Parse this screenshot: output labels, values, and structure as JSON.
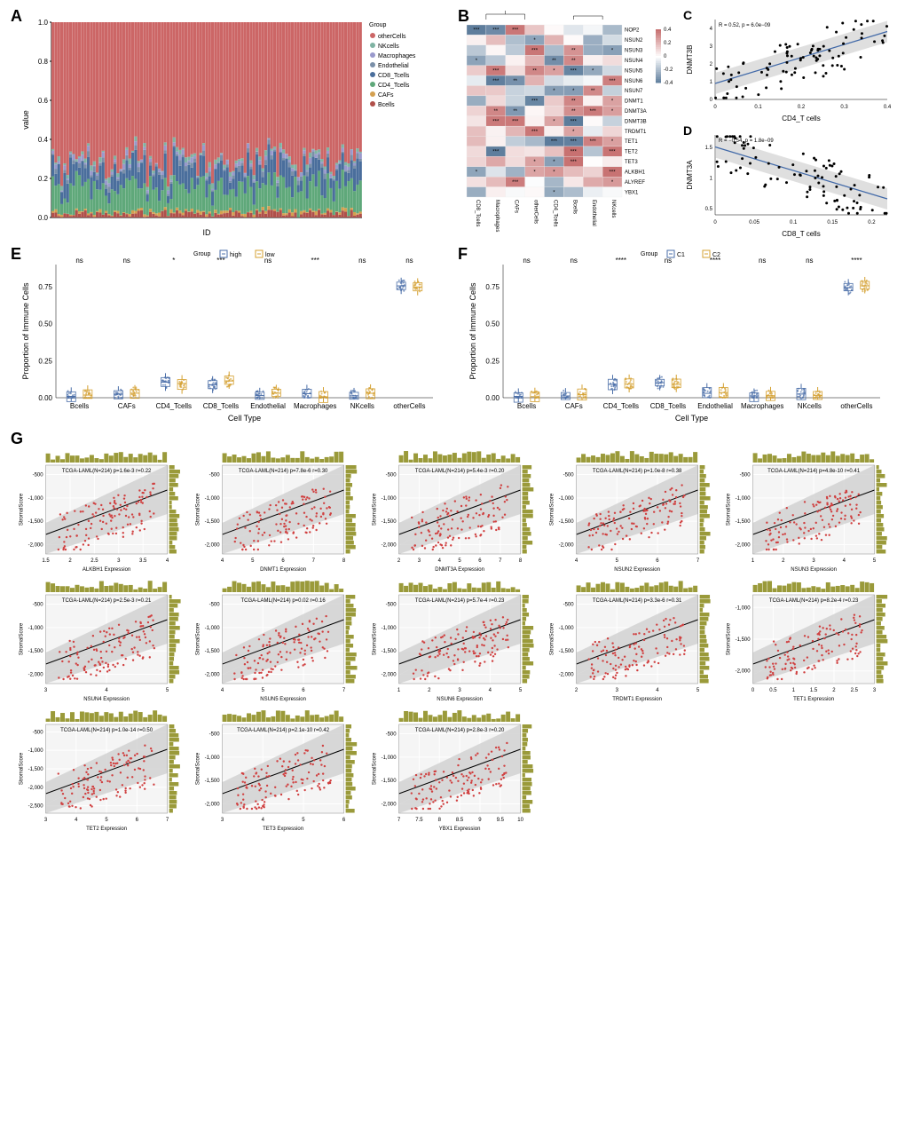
{
  "panelA": {
    "label": "A",
    "ylabel": "value",
    "xlabel": "ID",
    "legend_title": "Group",
    "yticks": [
      0.0,
      0.2,
      0.4,
      0.6,
      0.8,
      1.0
    ],
    "cell_types": [
      "otherCells",
      "NKcells",
      "Macrophages",
      "Endothelial",
      "CD8_Tcells",
      "CD4_Tcells",
      "CAFs",
      "Bcells"
    ],
    "colors": {
      "otherCells": "#cc6666",
      "NKcells": "#7fb3a3",
      "Macrophages": "#9999cc",
      "Endothelial": "#7a8fa8",
      "CD8_Tcells": "#4a6e9c",
      "CD4_Tcells": "#5fa87a",
      "CAFs": "#d4a050",
      "Bcells": "#b0504a"
    },
    "n_samples": 105
  },
  "panelB": {
    "label": "B",
    "genes": [
      "NOP2",
      "NSUN2",
      "NSUN3",
      "NSUN4",
      "NSUN5",
      "NSUN6",
      "NSUN7",
      "DNMT1",
      "DNMT3A",
      "DNMT3B",
      "TRDMT1",
      "TET1",
      "TET2",
      "TET3",
      "ALKBH1",
      "ALYREF",
      "YBX1"
    ],
    "cols": [
      "CD8_Tcells",
      "Macrophages",
      "CAFs",
      "otherCells",
      "CD4_Tcells",
      "Bcells",
      "Endothelial",
      "NKcells"
    ],
    "color_scale": {
      "min": -0.4,
      "max": 0.4,
      "low": "#5a7a9a",
      "mid": "#ffffff",
      "high": "#c77070"
    },
    "scale_ticks": [
      0.4,
      0.2,
      0,
      -0.2,
      -0.4
    ]
  },
  "panelC": {
    "label": "C",
    "ylabel": "DNMT3B",
    "xlabel": "CD4_T cells",
    "stat_text": "R = 0.52, p = 6.0e−09",
    "xlim": [
      0.0,
      0.4
    ],
    "xticks": [
      0.0,
      0.1,
      0.2,
      0.3,
      0.4
    ],
    "ylim": [
      0,
      4.5
    ],
    "yticks": [
      0,
      1,
      2,
      3,
      4
    ],
    "line_color": "#4169a8",
    "ci_color": "#c0c0c0"
  },
  "panelD": {
    "label": "D",
    "ylabel": "DNMT3A",
    "xlabel": "CD8_T cells",
    "stat_text": "R = −0.54, p = 1.8e−09",
    "xlim": [
      0.0,
      0.22
    ],
    "xticks": [
      0.0,
      0.05,
      0.1,
      0.15,
      0.2
    ],
    "ylim": [
      0.4,
      1.7
    ],
    "yticks": [
      0.5,
      1.0,
      1.5
    ],
    "line_color": "#4169a8",
    "ci_color": "#c0c0c0"
  },
  "panelE": {
    "label": "E",
    "ylabel": "Proportion of Immune Cells",
    "xlabel": "Cell Type",
    "legend_title": "Group",
    "groups": [
      "high",
      "low"
    ],
    "group_colors": {
      "high": "#4a6ea8",
      "low": "#d4a030"
    },
    "categories": [
      "Bcells",
      "CAFs",
      "CD4_Tcells",
      "CD8_Tcells",
      "Endothelial",
      "Macrophages",
      "NKcells",
      "otherCells"
    ],
    "sig": [
      "ns",
      "ns",
      "*",
      "***",
      "ns",
      "***",
      "ns",
      "ns"
    ],
    "yticks": [
      0.0,
      0.25,
      0.5,
      0.75
    ]
  },
  "panelF": {
    "label": "F",
    "ylabel": "Proportion of Immune Cells",
    "xlabel": "Cell Type",
    "legend_title": "Group",
    "groups": [
      "C1",
      "C2"
    ],
    "group_colors": {
      "C1": "#4a6ea8",
      "C2": "#d4a030"
    },
    "categories": [
      "Bcells",
      "CAFs",
      "CD4_Tcells",
      "CD8_Tcells",
      "Endothelial",
      "Macrophages",
      "NKcells",
      "otherCells"
    ],
    "sig": [
      "ns",
      "ns",
      "****",
      "ns",
      "****",
      "ns",
      "ns",
      "****"
    ],
    "yticks": [
      0.0,
      0.25,
      0.5,
      0.75
    ]
  },
  "panelG": {
    "label": "G",
    "common": {
      "ylabel": "StromalScore",
      "cohort": "TCGA-LAML(N=214)",
      "point_color": "#d04040",
      "hist_color": "#9a9a3a",
      "ci_color": "#d0d0d0",
      "line_color": "#000000",
      "bg_color": "#f5f5f5",
      "yticks": [
        -500,
        -1000,
        -1500,
        -2000
      ]
    },
    "plots": [
      {
        "gene": "ALKBH1",
        "p": "1.6e-3",
        "r": "0.22",
        "xlim": [
          1.5,
          4.0
        ],
        "xticks": [
          1.5,
          2.0,
          2.5,
          3.0,
          3.5,
          4.0
        ]
      },
      {
        "gene": "DNMT1",
        "p": "7.8e-6",
        "r": "0.30",
        "xlim": [
          4,
          8
        ],
        "xticks": [
          4,
          5,
          6,
          7,
          8
        ]
      },
      {
        "gene": "DNMT3A",
        "p": "5.4e-3",
        "r": "0.20",
        "xlim": [
          2,
          8
        ],
        "xticks": [
          2,
          3,
          4,
          5,
          6,
          7,
          8
        ]
      },
      {
        "gene": "NSUN2",
        "p": "1.0e-8",
        "r": "0.38",
        "xlim": [
          4,
          7
        ],
        "xticks": [
          4,
          5,
          6,
          7
        ]
      },
      {
        "gene": "NSUN3",
        "p": "4.8e-10",
        "r": "0.41",
        "xlim": [
          1,
          5
        ],
        "xticks": [
          1,
          2,
          3,
          4,
          5
        ]
      },
      {
        "gene": "NSUN4",
        "p": "2.5e-3",
        "r": "0.21",
        "xlim": [
          3,
          5
        ],
        "xticks": [
          3,
          4,
          5
        ]
      },
      {
        "gene": "NSUN5",
        "p": "0.02",
        "r": "0.16",
        "xlim": [
          4,
          7
        ],
        "xticks": [
          4,
          5,
          6,
          7
        ]
      },
      {
        "gene": "NSUN6",
        "p": "5.7e-4",
        "r": "0.23",
        "xlim": [
          1,
          5
        ],
        "xticks": [
          1,
          2,
          3,
          4,
          5
        ]
      },
      {
        "gene": "TRDMT1",
        "p": "3.3e-6",
        "r": "0.31",
        "xlim": [
          2,
          5
        ],
        "xticks": [
          2,
          3,
          4,
          5
        ]
      },
      {
        "gene": "TET1",
        "p": "8.2e-4",
        "r": "0.23",
        "xlim": [
          0.0,
          3.0
        ],
        "xticks": [
          0.0,
          0.5,
          1.0,
          1.5,
          2.0,
          2.5,
          3.0
        ],
        "yticks": [
          -1000,
          -1500,
          -2000
        ]
      },
      {
        "gene": "TET2",
        "p": "1.0e-14",
        "r": "0.50",
        "xlim": [
          3,
          7
        ],
        "xticks": [
          3,
          4,
          5,
          6,
          7
        ],
        "yticks": [
          -500,
          -1000,
          -1500,
          -2000,
          -2500
        ]
      },
      {
        "gene": "TET3",
        "p": "2.1e-10",
        "r": "0.42",
        "xlim": [
          3,
          6
        ],
        "xticks": [
          3,
          4,
          5,
          6
        ]
      },
      {
        "gene": "YBX1",
        "p": "2.8e-3",
        "r": "0.20",
        "xlim": [
          7.0,
          10.0
        ],
        "xticks": [
          7.0,
          7.5,
          8.0,
          8.5,
          9.0,
          9.5,
          10.0
        ]
      }
    ]
  }
}
